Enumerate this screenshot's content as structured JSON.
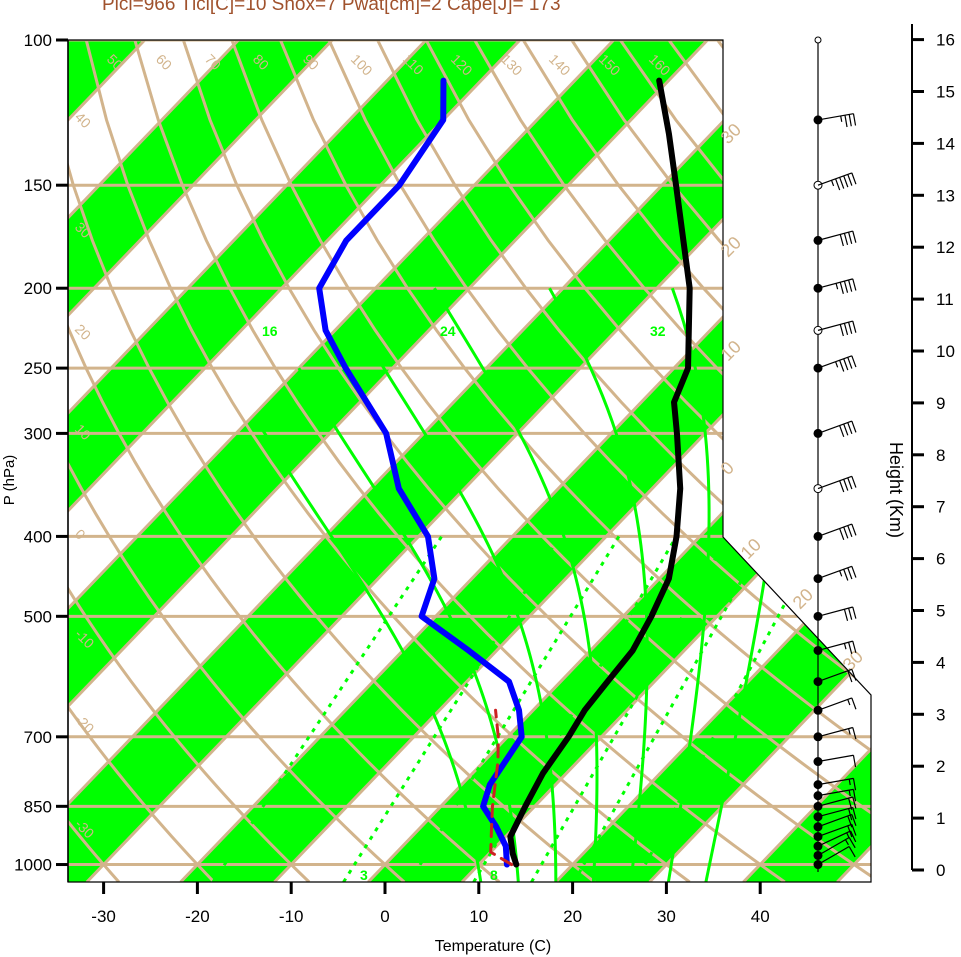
{
  "title": "Plcl=966 Tlcl[C]=10 Shox=7 Pwat[cm]=2 Cape[J]= 173",
  "colors": {
    "band": "#00ff00",
    "isotherm": "#d2b48c",
    "temp": "#000000",
    "dewpoint": "#0000ff",
    "parcel": "#cc2222",
    "title": "#a0522d"
  },
  "chart_data": {
    "type": "line",
    "title": "Plcl=966 Tlcl[C]=10 Shox=7 Pwat[cm]=2 Cape[J]= 173",
    "xlabel": "Temperature (C)",
    "ylabel": "P (hPa)",
    "y2label": "Height (Km)",
    "x_ticks": [
      "-30",
      "-20",
      "-10",
      "0",
      "10",
      "20",
      "30",
      "40"
    ],
    "x_tick_values": [
      -30,
      -20,
      -10,
      0,
      10,
      20,
      30,
      40
    ],
    "p_ticks": [
      100,
      150,
      200,
      250,
      300,
      400,
      500,
      700,
      850,
      1000
    ],
    "p_tick_labels": [
      "100",
      "150",
      "200",
      "250",
      "300",
      "400",
      "500",
      "700",
      "850",
      "1000"
    ],
    "height_ticks": [
      0,
      1,
      2,
      3,
      4,
      5,
      6,
      7,
      8,
      9,
      10,
      11,
      12,
      13,
      14,
      15,
      16
    ],
    "height_tick_labels": [
      "0",
      "1",
      "2",
      "3",
      "4",
      "5",
      "6",
      "7",
      "8",
      "9",
      "10",
      "11",
      "12",
      "13",
      "14",
      "15",
      "16"
    ],
    "y_axis": "log-pressure",
    "ylim": [
      1050,
      100
    ],
    "isotherm_labels": [
      "50",
      "60",
      "70",
      "80",
      "90",
      "100",
      "110",
      "120",
      "130",
      "140",
      "150",
      "160"
    ],
    "left_isotherm_labels": [
      "40",
      "30",
      "20",
      "10",
      "0",
      "-10",
      "-20",
      "-30"
    ],
    "right_isotherm_labels": [
      "30",
      "20",
      "10",
      "0",
      "10",
      "20",
      "30"
    ],
    "mixing_ratio_labels": [
      "3",
      "8",
      "16",
      "24",
      "32"
    ],
    "series": [
      {
        "name": "",
        "color": "#000000",
        "points": [
          {
            "p": 1000,
            "t": 14.0
          },
          {
            "p": 970,
            "t": 12.5
          },
          {
            "p": 925,
            "t": 10.5
          },
          {
            "p": 850,
            "t": 9.0
          },
          {
            "p": 775,
            "t": 7.5
          },
          {
            "p": 700,
            "t": 6.5
          },
          {
            "p": 650,
            "t": 5.5
          },
          {
            "p": 600,
            "t": 5.0
          },
          {
            "p": 550,
            "t": 4.5
          },
          {
            "p": 500,
            "t": 3.0
          },
          {
            "p": 450,
            "t": 1.0
          },
          {
            "p": 400,
            "t": -2.5
          },
          {
            "p": 350,
            "t": -7.0
          },
          {
            "p": 300,
            "t": -13.0
          },
          {
            "p": 275,
            "t": -16.5
          },
          {
            "p": 250,
            "t": -18.5
          },
          {
            "p": 200,
            "t": -26.5
          },
          {
            "p": 150,
            "t": -38.5
          },
          {
            "p": 130,
            "t": -44.5
          },
          {
            "p": 112,
            "t": -51.0
          }
        ]
      },
      {
        "name": "",
        "color": "#0000ff",
        "points": [
          {
            "p": 1000,
            "t": 13.0
          },
          {
            "p": 950,
            "t": 11.0
          },
          {
            "p": 900,
            "t": 8.0
          },
          {
            "p": 850,
            "t": 4.5
          },
          {
            "p": 800,
            "t": 3.0
          },
          {
            "p": 700,
            "t": 1.5
          },
          {
            "p": 650,
            "t": -1.5
          },
          {
            "p": 600,
            "t": -5.5
          },
          {
            "p": 550,
            "t": -13.0
          },
          {
            "p": 500,
            "t": -21.5
          },
          {
            "p": 450,
            "t": -24.0
          },
          {
            "p": 400,
            "t": -29.0
          },
          {
            "p": 350,
            "t": -37.0
          },
          {
            "p": 300,
            "t": -44.0
          },
          {
            "p": 250,
            "t": -55.0
          },
          {
            "p": 225,
            "t": -61.0
          },
          {
            "p": 200,
            "t": -66.0
          },
          {
            "p": 175,
            "t": -68.0
          },
          {
            "p": 150,
            "t": -68.0
          },
          {
            "p": 125,
            "t": -70.0
          },
          {
            "p": 112,
            "t": -74.0
          }
        ]
      },
      {
        "name": "",
        "color": "#cc2222",
        "dashed": true,
        "points": [
          {
            "p": 1000,
            "t": 13.5
          },
          {
            "p": 966,
            "t": 10.0
          },
          {
            "p": 900,
            "t": 7.5
          },
          {
            "p": 850,
            "t": 5.5
          },
          {
            "p": 750,
            "t": 1.5
          },
          {
            "p": 700,
            "t": -1.0
          },
          {
            "p": 650,
            "t": -4.0
          }
        ]
      }
    ],
    "wind_barbs": [
      {
        "p": 1000,
        "dir": 240,
        "spd": 10
      },
      {
        "p": 975,
        "dir": 240,
        "spd": 15
      },
      {
        "p": 950,
        "dir": 245,
        "spd": 15
      },
      {
        "p": 925,
        "dir": 250,
        "spd": 20
      },
      {
        "p": 900,
        "dir": 250,
        "spd": 20
      },
      {
        "p": 875,
        "dir": 255,
        "spd": 20
      },
      {
        "p": 850,
        "dir": 255,
        "spd": 20
      },
      {
        "p": 825,
        "dir": 260,
        "spd": 15
      },
      {
        "p": 800,
        "dir": 260,
        "spd": 15
      },
      {
        "p": 750,
        "dir": 260,
        "spd": 10
      },
      {
        "p": 700,
        "dir": 255,
        "spd": 15
      },
      {
        "p": 650,
        "dir": 250,
        "spd": 15
      },
      {
        "p": 600,
        "dir": 250,
        "spd": 20
      },
      {
        "p": 550,
        "dir": 255,
        "spd": 25
      },
      {
        "p": 500,
        "dir": 255,
        "spd": 30
      },
      {
        "p": 450,
        "dir": 250,
        "spd": 35
      },
      {
        "p": 400,
        "dir": 250,
        "spd": 40
      },
      {
        "p": 350,
        "dir": 250,
        "spd": 40
      },
      {
        "p": 300,
        "dir": 250,
        "spd": 40
      },
      {
        "p": 250,
        "dir": 250,
        "spd": 45
      },
      {
        "p": 225,
        "dir": 255,
        "spd": 40
      },
      {
        "p": 200,
        "dir": 255,
        "spd": 45
      },
      {
        "p": 175,
        "dir": 255,
        "spd": 40
      },
      {
        "p": 150,
        "dir": 250,
        "spd": 55
      },
      {
        "p": 125,
        "dir": 260,
        "spd": 35
      }
    ]
  }
}
